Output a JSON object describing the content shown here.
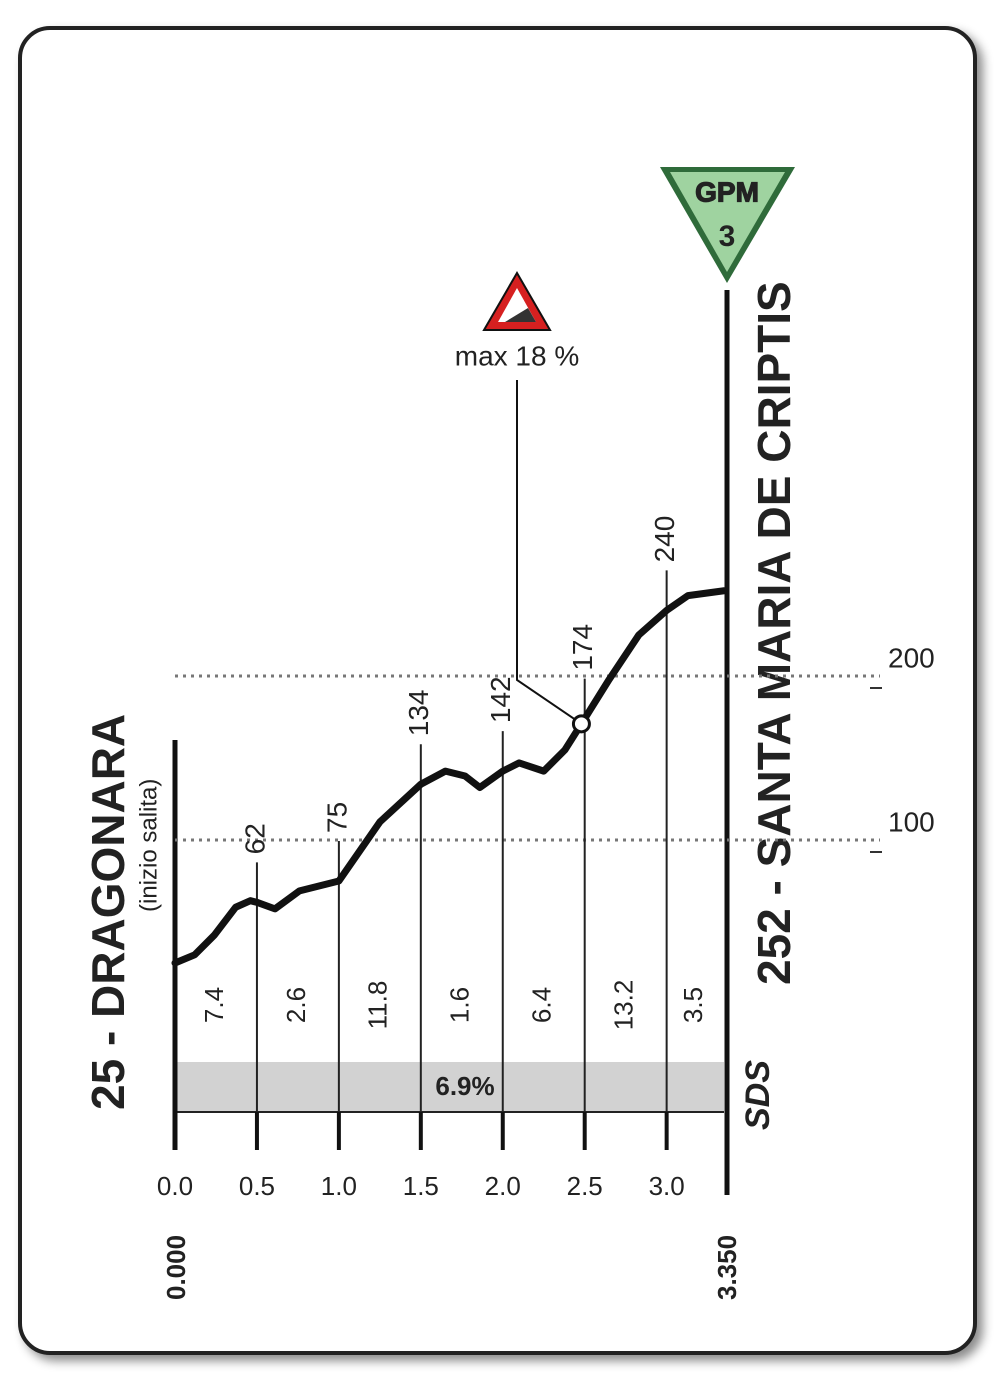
{
  "chart_data": {
    "type": "line",
    "start_label": "25 - DRAGONARA",
    "start_sublabel": "(inizio salita)",
    "end_label": "252 - SANTA MARIA DE CRIPTIS",
    "gpm": {
      "label": "GPM",
      "category": "3"
    },
    "max_gradient": {
      "x": 2.48,
      "label": "max 18 %"
    },
    "logo": "SDS",
    "start_distance": "0.000",
    "end_distance": "3.350",
    "average_gradient": "6.9%",
    "x": [
      0,
      0.12,
      0.24,
      0.37,
      0.46,
      0.5,
      0.61,
      0.76,
      1.0,
      1.25,
      1.5,
      1.65,
      1.77,
      1.86,
      2.0,
      2.1,
      2.25,
      2.38,
      2.5,
      2.65,
      2.83,
      3.0,
      3.13,
      3.35
    ],
    "values": [
      25,
      30,
      42,
      59,
      63,
      62,
      58,
      69,
      75,
      111,
      134,
      142,
      139,
      132,
      142,
      147,
      142,
      155,
      174,
      198,
      225,
      240,
      249,
      252
    ],
    "color": "#111111",
    "markers": {
      "x": [
        0.5,
        1.0,
        1.5,
        2.0,
        2.5,
        3.0
      ],
      "values": [
        62,
        75,
        134,
        142,
        174,
        240
      ]
    },
    "gradients": [
      7.4,
      2.6,
      11.8,
      1.6,
      6.4,
      13.2,
      3.5
    ],
    "xlim": [
      0,
      3.35
    ],
    "ylim": [
      0,
      300
    ],
    "xticks": [
      {
        "value": 0,
        "label": "0.0"
      },
      {
        "value": 0.5,
        "label": "0.5"
      },
      {
        "value": 1,
        "label": "1.0"
      },
      {
        "value": 1.5,
        "label": "1.5"
      },
      {
        "value": 2,
        "label": "2.0"
      },
      {
        "value": 2.5,
        "label": "2.5"
      },
      {
        "value": 3,
        "label": "3.0"
      }
    ],
    "yticks": [
      100,
      200
    ],
    "grid": true
  }
}
